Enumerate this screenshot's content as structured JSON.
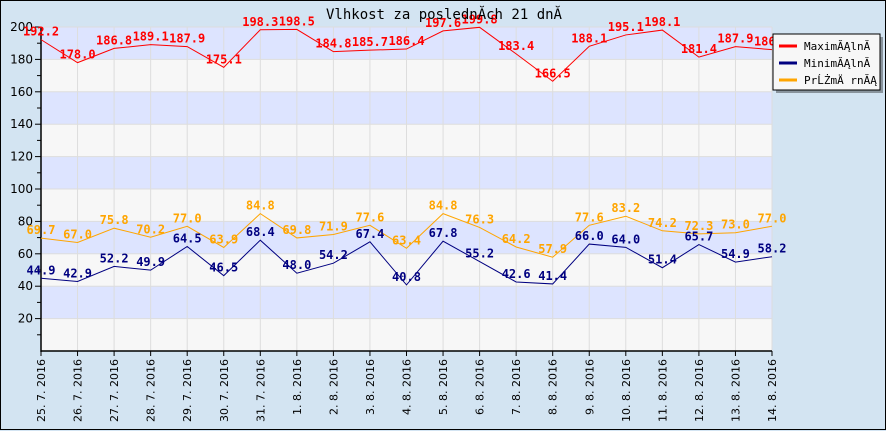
{
  "chart_data": {
    "type": "line",
    "title": "Vlhkost za poslednĂ­ch 21 dnĂ­",
    "xlabel": "",
    "ylabel": "",
    "ylim": [
      0,
      200
    ],
    "yticks": [
      20,
      40,
      60,
      80,
      100,
      120,
      140,
      160,
      180,
      200
    ],
    "grid": true,
    "legend_position": "top-right",
    "categories": [
      "25. 7. 2016",
      "26. 7. 2016",
      "27. 7. 2016",
      "28. 7. 2016",
      "29. 7. 2016",
      "30. 7. 2016",
      "31. 7. 2016",
      "1. 8. 2016",
      "2. 8. 2016",
      "3. 8. 2016",
      "4. 8. 2016",
      "5. 8. 2016",
      "6. 8. 2016",
      "7. 8. 2016",
      "8. 8. 2016",
      "9. 8. 2016",
      "10. 8. 2016",
      "11. 8. 2016",
      "12. 8. 2016",
      "13. 8. 2016",
      "14. 8. 2016"
    ],
    "series": [
      {
        "name": "MaximĂĄlnĂ­",
        "color": "#ff0000",
        "values": [
          192.2,
          178.0,
          186.8,
          189.1,
          187.9,
          175.1,
          198.3,
          198.5,
          184.8,
          185.7,
          186.4,
          197.6,
          199.8,
          183.4,
          166.5,
          188.1,
          195.1,
          198.1,
          181.4,
          187.9,
          186.0
        ]
      },
      {
        "name": "MinimĂĄlnĂ­",
        "color": "#000080",
        "values": [
          44.9,
          42.9,
          52.2,
          49.9,
          64.5,
          46.5,
          68.4,
          48.0,
          54.2,
          67.4,
          40.8,
          67.8,
          55.2,
          42.6,
          41.4,
          66.0,
          64.0,
          51.4,
          65.7,
          54.9,
          58.2
        ]
      },
      {
        "name": "PrĹŻmÄ rnĂĄ",
        "color": "#ffa500",
        "values": [
          69.7,
          67.0,
          75.8,
          70.2,
          77.0,
          63.9,
          84.8,
          69.8,
          71.9,
          77.6,
          63.4,
          84.8,
          76.3,
          64.2,
          57.9,
          77.6,
          83.2,
          74.2,
          72.3,
          73.0,
          77.0
        ]
      }
    ]
  }
}
